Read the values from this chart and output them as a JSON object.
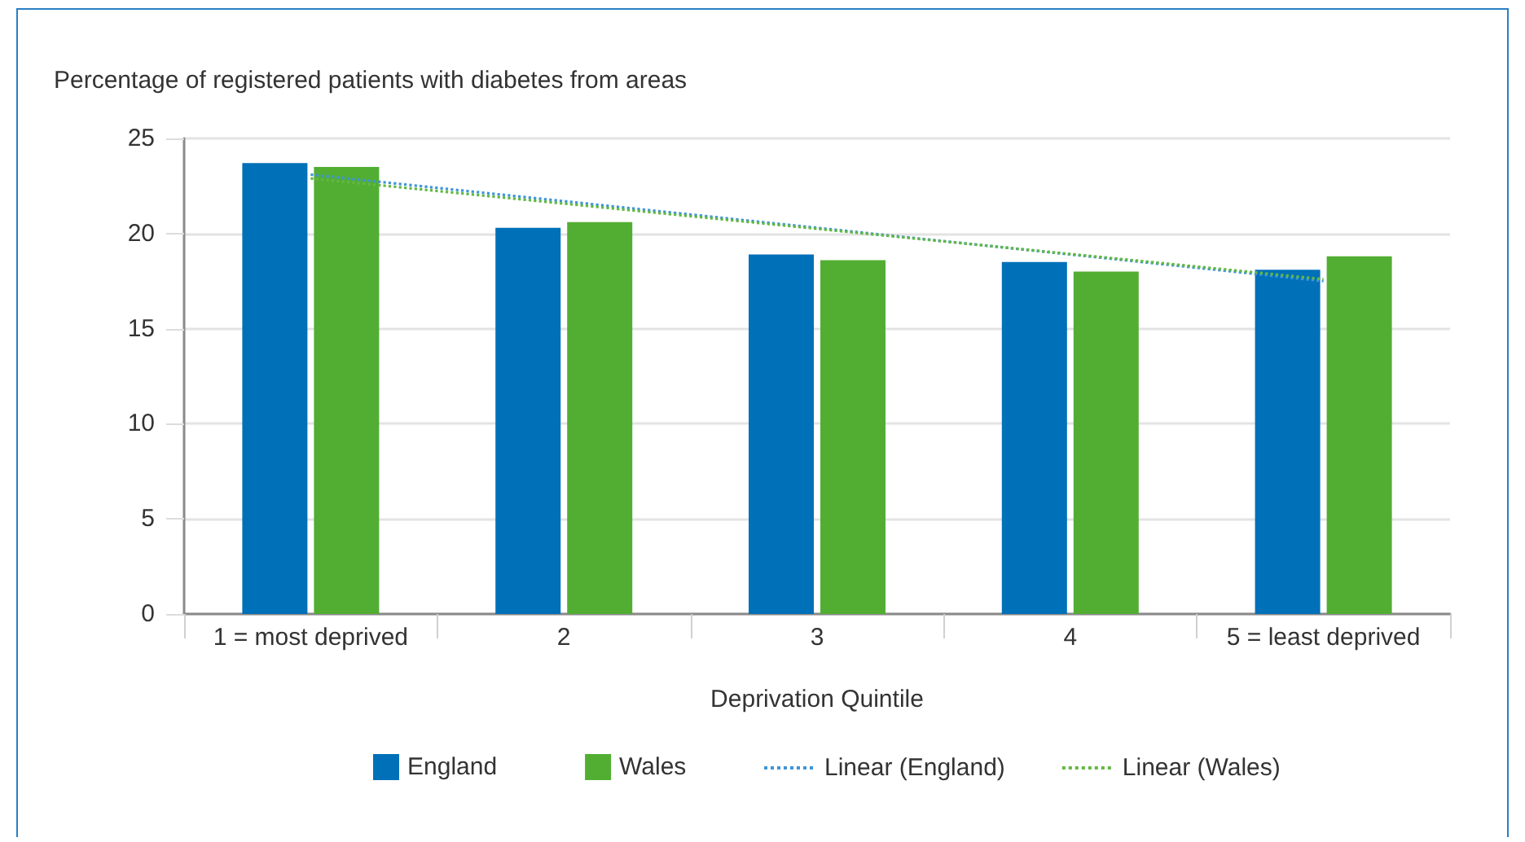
{
  "chart_data": {
    "type": "bar",
    "title": "Percentage of registered patients with diabetes from areas",
    "xlabel": "Deprivation Quintile",
    "categories": [
      "1 = most deprived",
      "2",
      "3",
      "4",
      "5 = least deprived"
    ],
    "series": [
      {
        "name": "England",
        "color": "#0070b8",
        "values": [
          23.7,
          20.3,
          18.9,
          18.5,
          18.1
        ]
      },
      {
        "name": "Wales",
        "color": "#52ae32",
        "values": [
          23.5,
          20.6,
          18.6,
          18.0,
          18.8
        ]
      },
      {
        "name": "Linear (England)",
        "type": "line",
        "color": "#3f95d6",
        "x": [
          "1 = most deprived",
          "5 = least deprived"
        ],
        "values": [
          23.1,
          17.5
        ],
        "line_style": "dotted",
        "marker": "none"
      },
      {
        "name": "Linear (Wales)",
        "type": "line",
        "color": "#62b843",
        "x": [
          "1 = most deprived",
          "5 = least deprived"
        ],
        "values": [
          22.9,
          17.6
        ],
        "line_style": "dotted",
        "marker": "none"
      }
    ],
    "ylim": [
      0,
      25
    ],
    "yticks": [
      0,
      5,
      10,
      15,
      20,
      25
    ],
    "grid": "y",
    "legend": "bottom"
  }
}
